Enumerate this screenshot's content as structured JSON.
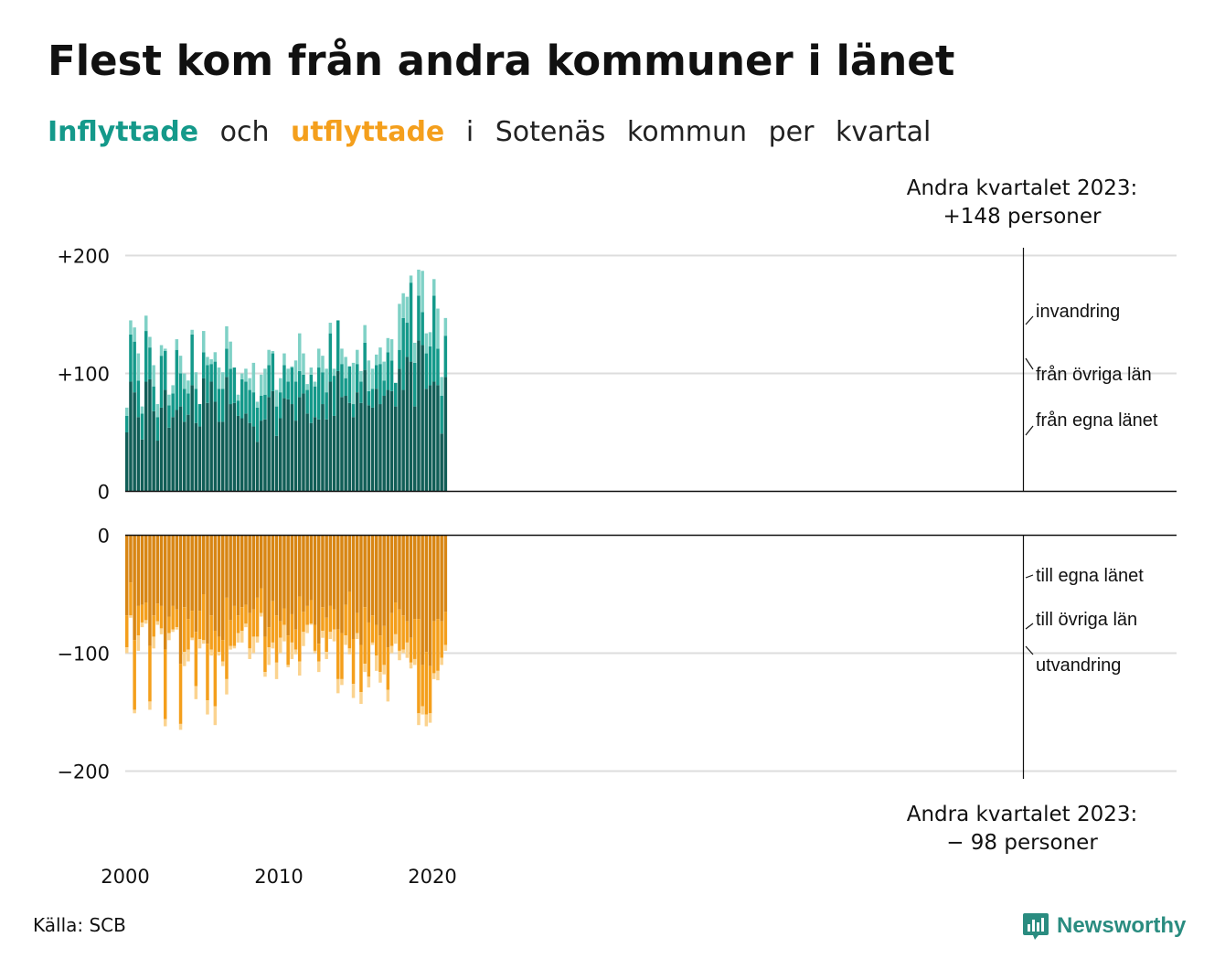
{
  "title": "Flest kom från andra kommuner i länet",
  "subtitle": {
    "inflow_word": "Inflyttade",
    "and_word": "och",
    "outflow_word": "utflyttade",
    "rest": [
      "i",
      "Sotenäs",
      "kommun",
      "per",
      "kvartal"
    ]
  },
  "source": "Källa: SCB",
  "brand": {
    "name": "Newsworthy",
    "icon": "newsworthy-bar-chart-icon"
  },
  "colors": {
    "in_own_county": "#115e57",
    "in_other_counties": "#14998a",
    "in_immigration": "#7fd1c6",
    "out_own_county": "#d88614",
    "out_other_counties": "#f49f1c",
    "out_emigration": "#fbd38f",
    "text": "#111111",
    "grid": "#dddddd"
  },
  "annotations": {
    "top_line1": "Andra kvartalet 2023:",
    "top_line2": "+148 personer",
    "bottom_line1": "Andra kvartalet 2023:",
    "bottom_line2": "− 98 personer"
  },
  "chart_data": [
    {
      "type": "stacked-bar",
      "panel": "inflyttade",
      "ylim": [
        0,
        200
      ],
      "yticks": [
        0,
        100,
        200
      ],
      "ytick_labels": [
        "0",
        "+100",
        "+200"
      ],
      "xticks": [
        2000,
        2010,
        2020
      ],
      "xtick_labels": [
        "2000",
        "2010",
        "2020"
      ],
      "x_start": "2000 Q1",
      "x_end": "2023 Q2",
      "grid": true,
      "series": [
        {
          "name": "från egna länet",
          "values": [
            50,
            93,
            84,
            63,
            44,
            93,
            95,
            68,
            43,
            71,
            86,
            54,
            63,
            69,
            72,
            59,
            65,
            90,
            58,
            55,
            96,
            75,
            93,
            76,
            59,
            59,
            97,
            74,
            75,
            64,
            62,
            66,
            58,
            55,
            42,
            60,
            61,
            80,
            85,
            47,
            62,
            79,
            78,
            74,
            60,
            80,
            83,
            66,
            58,
            63,
            61,
            74,
            61,
            93,
            64,
            102,
            80,
            81,
            75,
            63,
            84,
            75,
            103,
            73,
            71,
            87,
            74,
            81,
            86,
            85,
            72,
            104,
            86,
            114,
            110,
            72,
            128,
            124,
            87,
            90,
            93,
            90,
            49,
            97
          ]
        },
        {
          "name": "från övriga län",
          "values": [
            14,
            40,
            43,
            31,
            22,
            43,
            27,
            21,
            20,
            44,
            33,
            19,
            20,
            51,
            28,
            28,
            18,
            43,
            29,
            19,
            22,
            32,
            15,
            34,
            28,
            28,
            24,
            30,
            30,
            13,
            33,
            27,
            28,
            29,
            29,
            21,
            21,
            27,
            32,
            25,
            22,
            28,
            15,
            31,
            33,
            22,
            16,
            20,
            41,
            26,
            44,
            27,
            23,
            41,
            34,
            43,
            28,
            15,
            31,
            11,
            24,
            18,
            23,
            12,
            16,
            20,
            34,
            13,
            32,
            26,
            20,
            16,
            61,
            29,
            67,
            37,
            38,
            28,
            30,
            33,
            73,
            31,
            32,
            35
          ]
        },
        {
          "name": "invandring",
          "values": [
            7,
            12,
            12,
            23,
            6,
            13,
            9,
            18,
            11,
            9,
            2,
            9,
            7,
            9,
            15,
            13,
            11,
            4,
            14,
            0,
            18,
            7,
            4,
            8,
            18,
            14,
            19,
            23,
            0,
            5,
            5,
            11,
            10,
            25,
            5,
            18,
            22,
            13,
            2,
            14,
            12,
            10,
            11,
            1,
            18,
            32,
            18,
            5,
            6,
            4,
            16,
            14,
            20,
            9,
            6,
            0,
            13,
            18,
            0,
            35,
            12,
            9,
            15,
            26,
            17,
            9,
            14,
            16,
            12,
            18,
            0,
            39,
            21,
            22,
            6,
            17,
            22,
            35,
            17,
            12,
            14,
            34,
            16,
            15
          ]
        }
      ]
    },
    {
      "type": "stacked-bar",
      "panel": "utflyttade",
      "ylim": [
        -200,
        0
      ],
      "yticks": [
        0,
        -100,
        -200
      ],
      "ytick_labels": [
        "0",
        "−100",
        "−200"
      ],
      "x_start": "2000 Q1",
      "x_end": "2023 Q2",
      "grid": true,
      "series": [
        {
          "name": "till egna länet",
          "values": [
            -68,
            -40,
            -89,
            -60,
            -59,
            -57,
            -94,
            -68,
            -58,
            -60,
            -97,
            -69,
            -60,
            -63,
            -109,
            -61,
            -71,
            -64,
            -82,
            -64,
            -50,
            -92,
            -68,
            -81,
            -86,
            -89,
            -53,
            -72,
            -60,
            -68,
            -61,
            -59,
            -66,
            -63,
            -53,
            -45,
            -86,
            -78,
            -56,
            -68,
            -73,
            -62,
            -85,
            -67,
            -80,
            -52,
            -65,
            -60,
            -55,
            -76,
            -92,
            -61,
            -70,
            -60,
            -63,
            -80,
            -83,
            -59,
            -48,
            -88,
            -66,
            -93,
            -61,
            -74,
            -68,
            -76,
            -85,
            -77,
            -95,
            -66,
            -57,
            -63,
            -68,
            -73,
            -87,
            -71,
            -71,
            -110,
            -99,
            -111,
            -73,
            -71,
            -73,
            -65
          ]
        },
        {
          "name": "till övriga län",
          "values": [
            -27,
            -28,
            -59,
            -25,
            -15,
            -15,
            -47,
            -18,
            -15,
            -19,
            -59,
            -14,
            -20,
            -15,
            -51,
            -38,
            -26,
            -23,
            -46,
            -24,
            -39,
            -48,
            -29,
            -64,
            -13,
            -18,
            -69,
            -22,
            -34,
            -15,
            -20,
            -16,
            -30,
            -23,
            -33,
            -21,
            -30,
            -17,
            -35,
            -40,
            -14,
            -14,
            -25,
            -24,
            -17,
            -55,
            -17,
            -16,
            -20,
            -22,
            -15,
            -20,
            -29,
            -22,
            -17,
            -42,
            -39,
            -26,
            -48,
            -38,
            -17,
            -40,
            -48,
            -46,
            -23,
            -26,
            -31,
            -33,
            -36,
            -28,
            -27,
            -35,
            -29,
            -18,
            -21,
            -34,
            -80,
            -35,
            -53,
            -40,
            -44,
            -44,
            -31,
            -28
          ]
        },
        {
          "name": "utvandring",
          "values": [
            -5,
            -2,
            -3,
            -13,
            -4,
            -3,
            -7,
            -10,
            -3,
            -5,
            -6,
            -6,
            -2,
            -2,
            -5,
            -12,
            -10,
            -2,
            -11,
            -8,
            -3,
            -12,
            -5,
            -16,
            -3,
            -4,
            -13,
            -3,
            -2,
            -8,
            -10,
            -3,
            -9,
            -14,
            -5,
            -3,
            -4,
            -15,
            -5,
            -14,
            -13,
            -14,
            -2,
            -14,
            -4,
            -12,
            -12,
            -7,
            -1,
            -2,
            -9,
            -6,
            -6,
            -6,
            -10,
            -12,
            -5,
            -8,
            -5,
            -12,
            -5,
            -10,
            -7,
            -9,
            -2,
            -13,
            -9,
            -8,
            -10,
            -6,
            -8,
            -8,
            -3,
            -13,
            -5,
            -5,
            -10,
            -7,
            -10,
            -8,
            -5,
            -8,
            -6,
            -5
          ]
        }
      ]
    }
  ],
  "segment_labels": {
    "top": [
      "invandring",
      "från övriga län",
      "från egna länet"
    ],
    "bottom": [
      "till egna länet",
      "till övriga län",
      "utvandring"
    ]
  }
}
